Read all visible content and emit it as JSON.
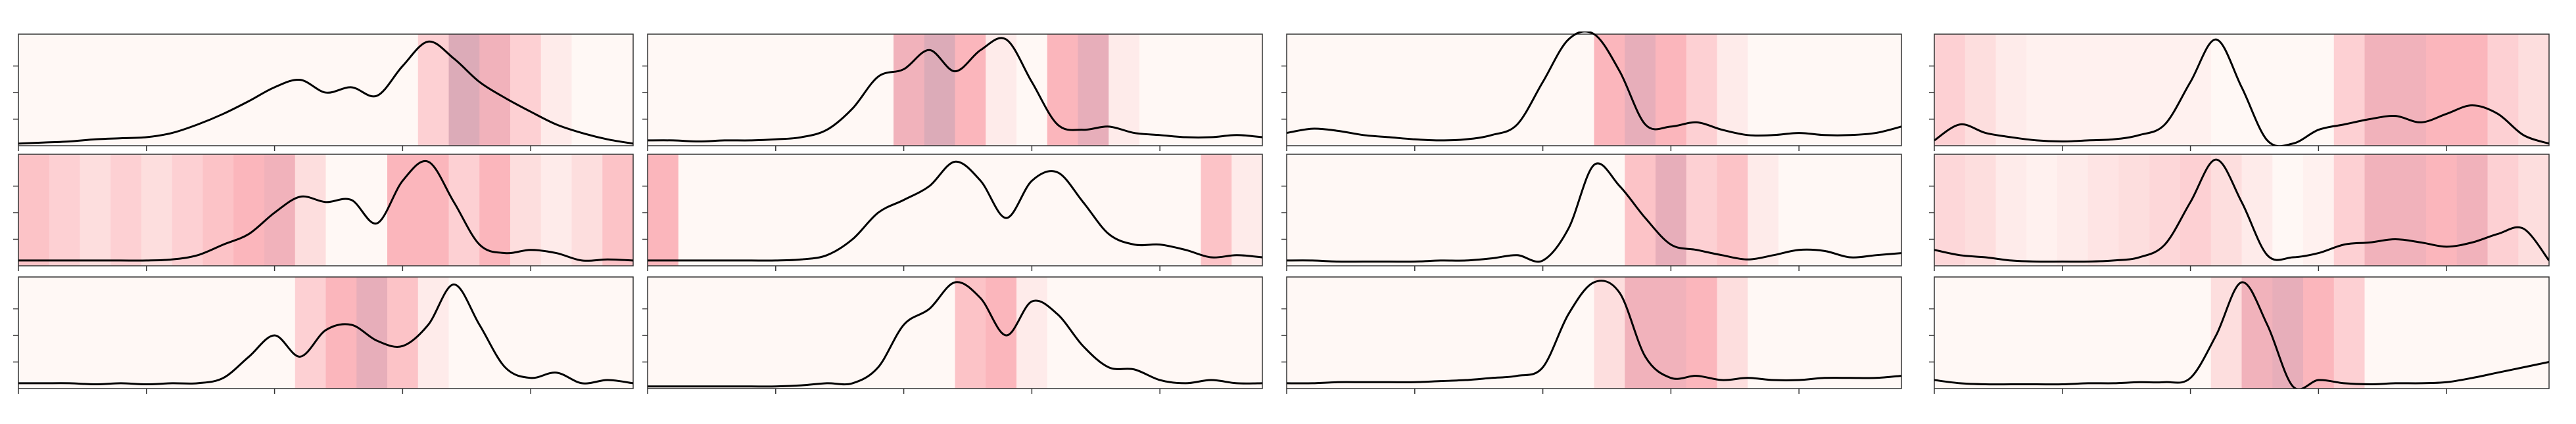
{
  "chart_data": [
    {
      "type": "line",
      "color": "#000000",
      "ylim": [
        0,
        1.05
      ],
      "yticks": [
        0.25,
        0.5,
        0.75
      ],
      "xlim": [
        0,
        24
      ],
      "xticks": [
        0,
        5,
        10,
        15,
        20
      ],
      "values": [
        0.02,
        0.03,
        0.04,
        0.06,
        0.07,
        0.08,
        0.12,
        0.2,
        0.3,
        0.42,
        0.55,
        0.62,
        0.5,
        0.55,
        0.47,
        0.75,
        0.98,
        0.82,
        0.6,
        0.45,
        0.32,
        0.2,
        0.12,
        0.06,
        0.02
      ],
      "background_intensity": [
        0,
        0,
        0,
        0,
        0,
        0,
        0,
        0,
        0,
        0,
        0,
        0,
        0,
        0.3,
        0.8,
        0.6,
        0.3,
        0.1,
        0,
        0
      ]
    },
    {
      "type": "line",
      "color": "#000000",
      "ylim": [
        0,
        1.05
      ],
      "yticks": [
        0.25,
        0.5,
        0.75
      ],
      "xlim": [
        0,
        24
      ],
      "xticks": [
        0,
        5,
        10,
        15,
        20
      ],
      "values": [
        0.05,
        0.05,
        0.04,
        0.05,
        0.05,
        0.06,
        0.08,
        0.15,
        0.35,
        0.65,
        0.72,
        0.9,
        0.7,
        0.9,
        1.0,
        0.6,
        0.2,
        0.15,
        0.18,
        0.12,
        0.1,
        0.08,
        0.08,
        0.1,
        0.08
      ],
      "background_intensity": [
        0,
        0,
        0,
        0,
        0,
        0,
        0,
        0,
        0.6,
        0.8,
        0.5,
        0.1,
        0,
        0.5,
        0.7,
        0.1,
        0,
        0,
        0,
        0
      ]
    },
    {
      "type": "line",
      "color": "#000000",
      "ylim": [
        0,
        1.05
      ],
      "yticks": [
        0.25,
        0.5,
        0.75
      ],
      "xlim": [
        0,
        24
      ],
      "xticks": [
        0,
        5,
        10,
        15,
        20
      ],
      "values": [
        0.12,
        0.16,
        0.14,
        0.1,
        0.08,
        0.06,
        0.05,
        0.06,
        0.1,
        0.2,
        0.6,
        1.0,
        1.05,
        0.7,
        0.2,
        0.18,
        0.22,
        0.15,
        0.1,
        0.1,
        0.12,
        0.1,
        0.1,
        0.12,
        0.18
      ],
      "background_intensity": [
        0,
        0,
        0,
        0,
        0,
        0,
        0,
        0,
        0,
        0,
        0.5,
        0.7,
        0.5,
        0.3,
        0.1,
        0,
        0,
        0,
        0,
        0
      ]
    },
    {
      "type": "line",
      "color": "#000000",
      "ylim": [
        0,
        1.05
      ],
      "yticks": [
        0.25,
        0.5,
        0.75
      ],
      "xlim": [
        0,
        24
      ],
      "xticks": [
        0,
        5,
        10,
        15,
        20
      ],
      "values": [
        0.05,
        0.2,
        0.12,
        0.08,
        0.05,
        0.04,
        0.05,
        0.06,
        0.1,
        0.2,
        0.6,
        1.0,
        0.55,
        0.05,
        0.02,
        0.15,
        0.2,
        0.25,
        0.28,
        0.22,
        0.3,
        0.38,
        0.3,
        0.1,
        0.02
      ],
      "background_intensity": [
        0.3,
        0.2,
        0.1,
        0.05,
        0.05,
        0.05,
        0.05,
        0.05,
        0.05,
        0,
        0,
        0,
        0,
        0.3,
        0.6,
        0.6,
        0.5,
        0.5,
        0.3,
        0.2
      ]
    },
    {
      "type": "line",
      "color": "#000000",
      "ylim": [
        0,
        1.05
      ],
      "yticks": [
        0.25,
        0.5,
        0.75
      ],
      "xlim": [
        0,
        24
      ],
      "xticks": [
        0,
        5,
        10,
        15,
        20
      ],
      "values": [
        0.05,
        0.05,
        0.05,
        0.05,
        0.05,
        0.05,
        0.06,
        0.1,
        0.2,
        0.3,
        0.5,
        0.65,
        0.6,
        0.62,
        0.4,
        0.8,
        0.98,
        0.6,
        0.2,
        0.12,
        0.15,
        0.12,
        0.05,
        0.06,
        0.05
      ],
      "background_intensity": [
        0.4,
        0.3,
        0.2,
        0.3,
        0.2,
        0.3,
        0.4,
        0.5,
        0.6,
        0.2,
        0,
        0,
        0.5,
        0.5,
        0.3,
        0.5,
        0.2,
        0.1,
        0.2,
        0.4
      ]
    },
    {
      "type": "line",
      "color": "#000000",
      "ylim": [
        0,
        1.05
      ],
      "yticks": [
        0.25,
        0.5,
        0.75
      ],
      "xlim": [
        0,
        24
      ],
      "xticks": [
        0,
        5,
        10,
        15,
        20
      ],
      "values": [
        0.05,
        0.05,
        0.05,
        0.05,
        0.05,
        0.05,
        0.06,
        0.1,
        0.25,
        0.5,
        0.62,
        0.75,
        0.98,
        0.8,
        0.45,
        0.8,
        0.88,
        0.6,
        0.3,
        0.2,
        0.2,
        0.15,
        0.08,
        0.1,
        0.08
      ],
      "background_intensity": [
        0.5,
        0,
        0,
        0,
        0,
        0,
        0,
        0,
        0,
        0,
        0,
        0,
        0,
        0,
        0,
        0,
        0,
        0,
        0.4,
        0.1
      ]
    },
    {
      "type": "line",
      "color": "#000000",
      "ylim": [
        0,
        1.05
      ],
      "yticks": [
        0.25,
        0.5,
        0.75
      ],
      "xlim": [
        0,
        24
      ],
      "xticks": [
        0,
        5,
        10,
        15,
        20
      ],
      "values": [
        0.05,
        0.05,
        0.04,
        0.04,
        0.04,
        0.04,
        0.05,
        0.05,
        0.07,
        0.1,
        0.05,
        0.35,
        0.95,
        0.75,
        0.45,
        0.2,
        0.15,
        0.1,
        0.06,
        0.1,
        0.15,
        0.14,
        0.08,
        0.1,
        0.12
      ],
      "background_intensity": [
        0,
        0,
        0,
        0,
        0,
        0,
        0,
        0,
        0,
        0,
        0,
        0.4,
        0.7,
        0.3,
        0.4,
        0.1,
        0,
        0,
        0,
        0
      ]
    },
    {
      "type": "line",
      "color": "#000000",
      "ylim": [
        0,
        1.05
      ],
      "yticks": [
        0.25,
        0.5,
        0.75
      ],
      "xlim": [
        0,
        24
      ],
      "xticks": [
        0,
        5,
        10,
        15,
        20
      ],
      "values": [
        0.15,
        0.1,
        0.08,
        0.05,
        0.04,
        0.04,
        0.04,
        0.05,
        0.08,
        0.2,
        0.6,
        1.0,
        0.6,
        0.1,
        0.08,
        0.12,
        0.2,
        0.22,
        0.25,
        0.22,
        0.18,
        0.22,
        0.3,
        0.35,
        0.05
      ],
      "background_intensity": [
        0.25,
        0.2,
        0.1,
        0.05,
        0.1,
        0.15,
        0.2,
        0.25,
        0.3,
        0.2,
        0.1,
        0,
        0.05,
        0.3,
        0.6,
        0.6,
        0.5,
        0.6,
        0.3,
        0.2
      ]
    },
    {
      "type": "line",
      "color": "#000000",
      "ylim": [
        0,
        1.05
      ],
      "yticks": [
        0.25,
        0.5,
        0.75
      ],
      "xlim": [
        0,
        24
      ],
      "xticks": [
        0,
        5,
        10,
        15,
        20
      ],
      "values": [
        0.05,
        0.05,
        0.05,
        0.04,
        0.05,
        0.04,
        0.05,
        0.05,
        0.1,
        0.3,
        0.5,
        0.3,
        0.55,
        0.6,
        0.45,
        0.4,
        0.6,
        0.98,
        0.6,
        0.2,
        0.1,
        0.15,
        0.05,
        0.08,
        0.05
      ],
      "background_intensity": [
        0,
        0,
        0,
        0,
        0,
        0,
        0,
        0,
        0,
        0.3,
        0.5,
        0.7,
        0.4,
        0.1,
        0,
        0,
        0,
        0,
        0,
        0
      ]
    },
    {
      "type": "line",
      "color": "#000000",
      "ylim": [
        0,
        1.05
      ],
      "yticks": [
        0.25,
        0.5,
        0.75
      ],
      "xlim": [
        0,
        24
      ],
      "xticks": [
        0,
        5,
        10,
        15,
        20
      ],
      "values": [
        0.02,
        0.02,
        0.02,
        0.02,
        0.02,
        0.02,
        0.03,
        0.05,
        0.05,
        0.2,
        0.6,
        0.75,
        1.0,
        0.85,
        0.5,
        0.82,
        0.7,
        0.4,
        0.2,
        0.18,
        0.08,
        0.05,
        0.08,
        0.05,
        0.05
      ],
      "background_intensity": [
        0,
        0,
        0,
        0,
        0,
        0,
        0,
        0,
        0,
        0,
        0.4,
        0.5,
        0.1,
        0,
        0,
        0,
        0,
        0,
        0,
        0
      ]
    },
    {
      "type": "line",
      "color": "#000000",
      "ylim": [
        0,
        1.05
      ],
      "yticks": [
        0.25,
        0.5,
        0.75
      ],
      "xlim": [
        0,
        24
      ],
      "xticks": [
        0,
        5,
        10,
        15,
        20
      ],
      "values": [
        0.05,
        0.05,
        0.06,
        0.06,
        0.06,
        0.06,
        0.07,
        0.08,
        0.1,
        0.12,
        0.2,
        0.7,
        1.0,
        0.9,
        0.3,
        0.1,
        0.12,
        0.08,
        0.1,
        0.08,
        0.08,
        0.1,
        0.1,
        0.1,
        0.12
      ],
      "background_intensity": [
        0,
        0,
        0,
        0,
        0,
        0,
        0,
        0,
        0,
        0,
        0.2,
        0.6,
        0.6,
        0.5,
        0.2,
        0,
        0,
        0,
        0,
        0
      ]
    },
    {
      "type": "line",
      "color": "#000000",
      "ylim": [
        0,
        1.05
      ],
      "yticks": [
        0.25,
        0.5,
        0.75
      ],
      "xlim": [
        0,
        24
      ],
      "xticks": [
        0,
        5,
        10,
        15,
        20
      ],
      "values": [
        0.08,
        0.05,
        0.04,
        0.04,
        0.04,
        0.04,
        0.05,
        0.05,
        0.06,
        0.06,
        0.1,
        0.5,
        1.0,
        0.6,
        0.02,
        0.08,
        0.05,
        0.04,
        0.05,
        0.05,
        0.06,
        0.1,
        0.15,
        0.2,
        0.25
      ],
      "background_intensity": [
        0,
        0,
        0,
        0,
        0,
        0,
        0,
        0,
        0,
        0.2,
        0.6,
        0.7,
        0.5,
        0.3,
        0,
        0,
        0,
        0,
        0,
        0
      ]
    }
  ]
}
